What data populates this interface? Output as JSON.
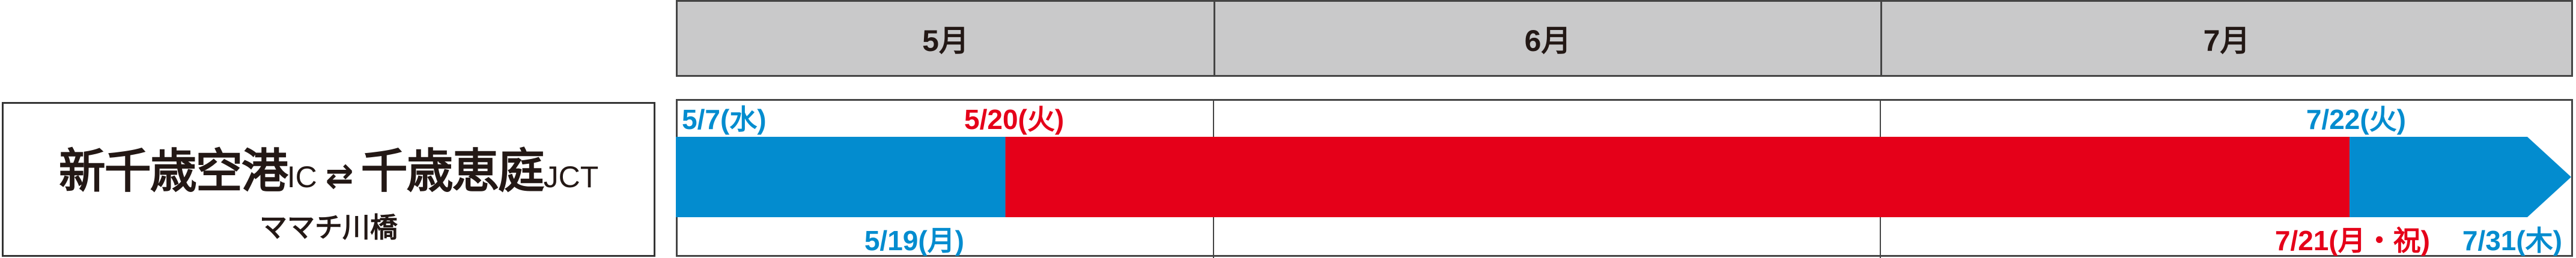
{
  "label": {
    "from": "新千歳空港",
    "from_suffix": "IC",
    "arrow": "⇄",
    "to": "千歳恵庭",
    "to_suffix": "JCT",
    "section": "ママチ川橋"
  },
  "colors": {
    "blue": "#038ccf",
    "red": "#e50019",
    "header": "#c9c9ca"
  },
  "chart_data": {
    "type": "gantt",
    "categories": [
      "5月",
      "6月",
      "7月"
    ],
    "x_range": [
      "2025-05-01",
      "2025-07-31"
    ],
    "series": [
      {
        "start": "5/7",
        "end": "5/19",
        "color": "#038ccf"
      },
      {
        "start": "5/20",
        "end": "7/21",
        "color": "#e50019"
      },
      {
        "start": "7/22",
        "end": "7/31",
        "color": "#038ccf",
        "arrow": true
      }
    ],
    "labels": [
      {
        "text": "5/7(水)",
        "color": "#038ccf",
        "pos": "top"
      },
      {
        "text": "5/19(月)",
        "color": "#038ccf",
        "pos": "bottom"
      },
      {
        "text": "5/20(火)",
        "color": "#e50019",
        "pos": "top"
      },
      {
        "text": "7/21(月・祝)",
        "color": "#e50019",
        "pos": "bottom"
      },
      {
        "text": "7/22(火)",
        "color": "#038ccf",
        "pos": "top"
      },
      {
        "text": "7/31(木)",
        "color": "#038ccf",
        "pos": "bottom"
      }
    ]
  }
}
